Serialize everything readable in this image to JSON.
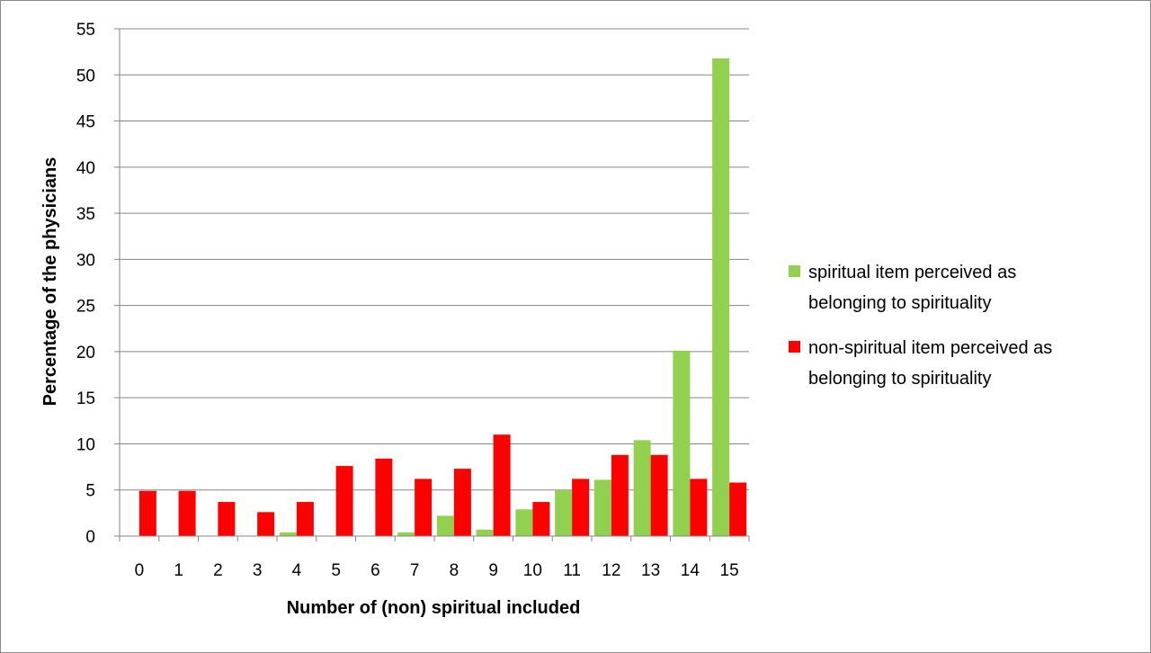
{
  "chart_data": {
    "type": "bar",
    "title": "",
    "xlabel": "Number of (non) spiritual included",
    "ylabel": "Percentage of the physicians",
    "categories": [
      "0",
      "1",
      "2",
      "3",
      "4",
      "5",
      "6",
      "7",
      "8",
      "9",
      "10",
      "11",
      "12",
      "13",
      "14",
      "15"
    ],
    "ylim": [
      0,
      55
    ],
    "yticks": [
      0,
      5,
      10,
      15,
      20,
      25,
      30,
      35,
      40,
      45,
      50,
      55
    ],
    "grid": true,
    "legend_position": "right",
    "series": [
      {
        "name": "spiritual item perceived as belonging to spirituality",
        "legend_lines": [
          "spiritual item perceived as",
          "belonging to spirituality"
        ],
        "color": "#92d050",
        "values": [
          0,
          0,
          0,
          0,
          0.4,
          0,
          0,
          0.4,
          2.2,
          0.7,
          2.9,
          5.0,
          6.1,
          10.4,
          20.1,
          51.8
        ]
      },
      {
        "name": "non-spiritual item perceived as belonging to spirituality",
        "legend_lines": [
          "non-spiritual item perceived as",
          "belonging to spirituality"
        ],
        "color": "#ff0000",
        "values": [
          4.9,
          4.9,
          3.7,
          2.6,
          3.7,
          7.6,
          8.4,
          6.2,
          7.3,
          11.0,
          3.7,
          6.2,
          8.8,
          8.8,
          6.2,
          5.8
        ]
      }
    ]
  }
}
